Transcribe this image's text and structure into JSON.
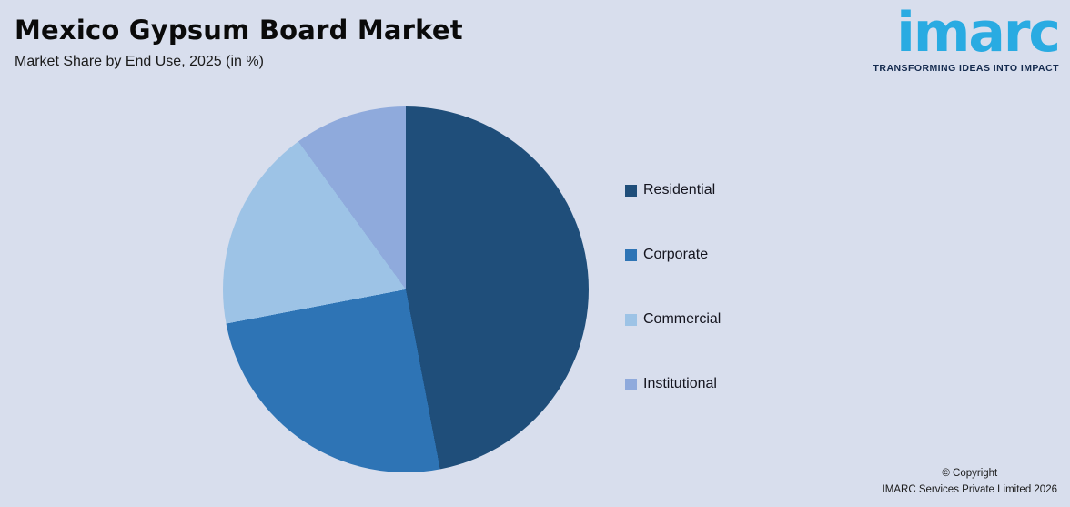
{
  "header": {
    "title": "Mexico Gypsum Board Market",
    "subtitle": "Market Share by End Use, 2025 (in %)"
  },
  "logo": {
    "brand": "imarc",
    "tagline": "TRANSFORMING IDEAS INTO IMPACT",
    "brand_color": "#29ABE2",
    "tagline_color": "#142A4E"
  },
  "chart_data": {
    "type": "pie",
    "title": "Mexico Gypsum Board Market",
    "subtitle": "Market Share by End Use, 2025 (in %)",
    "categories": [
      "Residential",
      "Corporate",
      "Commercial",
      "Institutional"
    ],
    "values": [
      47,
      25,
      18,
      10
    ],
    "colors": [
      "#1F4E7A",
      "#2E74B5",
      "#9DC3E6",
      "#8FAADC"
    ],
    "start_angle_deg": 0,
    "direction": "clockwise",
    "legend_position": "right",
    "background": "#D8DEED"
  },
  "footer": {
    "copyright_line1": "© Copyright",
    "copyright_line2": "IMARC Services Private Limited 2026"
  }
}
